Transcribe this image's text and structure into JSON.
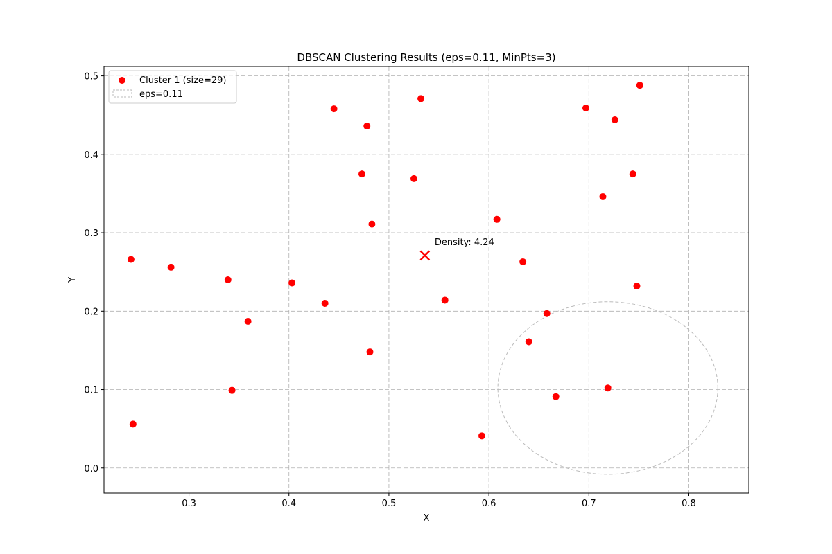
{
  "chart_data": {
    "type": "scatter",
    "title": "DBSCAN Clustering Results (eps=0.11, MinPts=3)",
    "xlabel": "X",
    "ylabel": "Y",
    "xlim": [
      0.215,
      0.86
    ],
    "ylim": [
      -0.032,
      0.512
    ],
    "xticks": [
      0.3,
      0.4,
      0.5,
      0.6,
      0.7,
      0.8
    ],
    "xtick_labels": [
      "0.3",
      "0.4",
      "0.5",
      "0.6",
      "0.7",
      "0.8"
    ],
    "yticks": [
      0.0,
      0.1,
      0.2,
      0.3,
      0.4,
      0.5
    ],
    "ytick_labels": [
      "0.0",
      "0.1",
      "0.2",
      "0.3",
      "0.4",
      "0.5"
    ],
    "grid": true,
    "legend_position": "top-left",
    "series": [
      {
        "name": "Cluster 1 (size=29)",
        "color": "#ff0000",
        "marker": "circle",
        "points": [
          {
            "x": 0.445,
            "y": 0.458
          },
          {
            "x": 0.532,
            "y": 0.471
          },
          {
            "x": 0.478,
            "y": 0.436
          },
          {
            "x": 0.473,
            "y": 0.375
          },
          {
            "x": 0.525,
            "y": 0.369
          },
          {
            "x": 0.483,
            "y": 0.311
          },
          {
            "x": 0.242,
            "y": 0.266
          },
          {
            "x": 0.282,
            "y": 0.256
          },
          {
            "x": 0.339,
            "y": 0.24
          },
          {
            "x": 0.403,
            "y": 0.236
          },
          {
            "x": 0.436,
            "y": 0.21
          },
          {
            "x": 0.359,
            "y": 0.187
          },
          {
            "x": 0.481,
            "y": 0.148
          },
          {
            "x": 0.343,
            "y": 0.099
          },
          {
            "x": 0.244,
            "y": 0.056
          },
          {
            "x": 0.556,
            "y": 0.214
          },
          {
            "x": 0.593,
            "y": 0.041
          },
          {
            "x": 0.608,
            "y": 0.317
          },
          {
            "x": 0.634,
            "y": 0.263
          },
          {
            "x": 0.658,
            "y": 0.197
          },
          {
            "x": 0.64,
            "y": 0.161
          },
          {
            "x": 0.667,
            "y": 0.091
          },
          {
            "x": 0.719,
            "y": 0.102
          },
          {
            "x": 0.697,
            "y": 0.459
          },
          {
            "x": 0.726,
            "y": 0.444
          },
          {
            "x": 0.751,
            "y": 0.488
          },
          {
            "x": 0.744,
            "y": 0.375
          },
          {
            "x": 0.714,
            "y": 0.346
          },
          {
            "x": 0.748,
            "y": 0.232
          }
        ]
      },
      {
        "name": "eps=0.11",
        "type": "circle-outline",
        "color": "#bbbbbb",
        "center": {
          "x": 0.719,
          "y": 0.102
        },
        "radius": 0.11
      }
    ],
    "centroid": {
      "x": 0.536,
      "y": 0.271,
      "marker": "x",
      "color": "#ff0000",
      "label": "Density: 4.24"
    }
  }
}
